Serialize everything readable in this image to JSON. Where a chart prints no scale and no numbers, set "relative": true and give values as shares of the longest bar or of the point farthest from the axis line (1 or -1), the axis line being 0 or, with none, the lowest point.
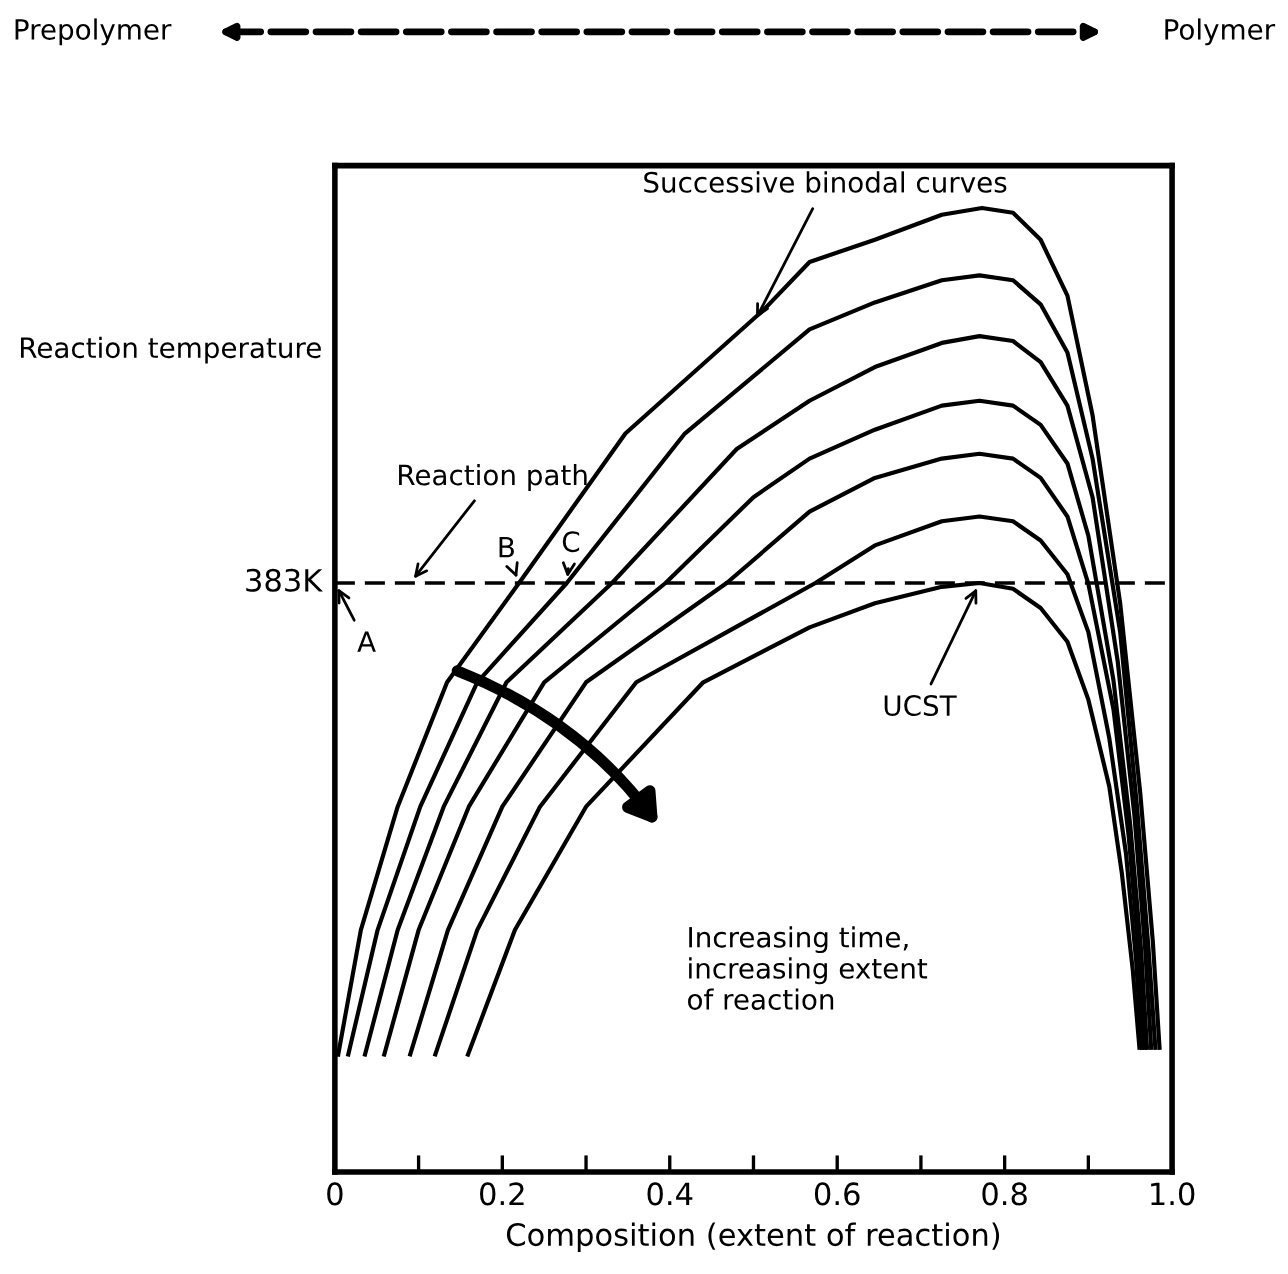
{
  "chart_data": {
    "type": "line",
    "relative": true,
    "xlabel": "Composition (extent of reaction)",
    "ylabel": "Reaction temperature",
    "xlim": [
      0,
      1.0
    ],
    "xticks": [
      0,
      {
        "value": 0.1,
        "label": null
      },
      0.2,
      {
        "value": 0.3,
        "label": null
      },
      0.4,
      {
        "value": 0.5,
        "label": null
      },
      0.6,
      {
        "value": 0.7,
        "label": null
      },
      0.8,
      {
        "value": 0.9,
        "label": null
      },
      {
        "value": 1.0,
        "label": "1.0"
      }
    ],
    "grid": false,
    "marker": "none",
    "line_style": "solid",
    "series": [
      {
        "color": "#000000",
        "x": [
          0.004,
          0.031,
          0.075,
          0.134,
          0.22,
          0.347,
          0.513,
          0.567,
          0.645,
          0.725,
          0.773,
          0.81,
          0.843,
          0.875,
          0.905,
          0.938,
          0.962,
          0.977,
          0.985
        ],
        "values": [
          0.122,
          0.251,
          0.379,
          0.508,
          0.611,
          0.766,
          0.895,
          0.944,
          0.967,
          0.993,
          1.0,
          0.995,
          0.967,
          0.909,
          0.785,
          0.59,
          0.393,
          0.239,
          0.129
        ]
      },
      {
        "color": "#000000",
        "x": [
          0.016,
          0.051,
          0.102,
          0.17,
          0.277,
          0.418,
          0.567,
          0.645,
          0.725,
          0.77,
          0.81,
          0.843,
          0.875,
          0.905,
          0.938,
          0.958,
          0.972,
          0.98
        ],
        "values": [
          0.122,
          0.251,
          0.379,
          0.508,
          0.611,
          0.766,
          0.874,
          0.902,
          0.925,
          0.93,
          0.925,
          0.9,
          0.85,
          0.74,
          0.56,
          0.38,
          0.23,
          0.129
        ]
      },
      {
        "color": "#000000",
        "x": [
          0.036,
          0.075,
          0.13,
          0.205,
          0.331,
          0.48,
          0.567,
          0.645,
          0.725,
          0.77,
          0.81,
          0.843,
          0.875,
          0.905,
          0.935,
          0.955,
          0.968,
          0.975
        ],
        "values": [
          0.122,
          0.251,
          0.379,
          0.508,
          0.611,
          0.75,
          0.8,
          0.835,
          0.86,
          0.867,
          0.862,
          0.84,
          0.795,
          0.7,
          0.53,
          0.37,
          0.23,
          0.129
        ]
      },
      {
        "color": "#000000",
        "x": [
          0.059,
          0.1,
          0.16,
          0.25,
          0.395,
          0.5,
          0.567,
          0.645,
          0.725,
          0.77,
          0.81,
          0.843,
          0.875,
          0.9,
          0.93,
          0.95,
          0.963,
          0.97
        ],
        "values": [
          0.122,
          0.251,
          0.379,
          0.508,
          0.611,
          0.7,
          0.74,
          0.77,
          0.795,
          0.8,
          0.795,
          0.775,
          0.735,
          0.66,
          0.51,
          0.36,
          0.23,
          0.129
        ]
      },
      {
        "color": "#000000",
        "x": [
          0.09,
          0.135,
          0.2,
          0.3,
          0.468,
          0.567,
          0.645,
          0.725,
          0.77,
          0.81,
          0.843,
          0.875,
          0.9,
          0.93,
          0.948,
          0.96,
          0.967
        ],
        "values": [
          0.122,
          0.251,
          0.379,
          0.508,
          0.611,
          0.685,
          0.72,
          0.74,
          0.745,
          0.74,
          0.72,
          0.68,
          0.61,
          0.48,
          0.35,
          0.23,
          0.129
        ]
      },
      {
        "color": "#000000",
        "x": [
          0.12,
          0.17,
          0.245,
          0.36,
          0.574,
          0.645,
          0.725,
          0.77,
          0.81,
          0.843,
          0.875,
          0.9,
          0.925,
          0.945,
          0.957,
          0.964
        ],
        "values": [
          0.122,
          0.251,
          0.379,
          0.508,
          0.611,
          0.65,
          0.675,
          0.68,
          0.675,
          0.655,
          0.62,
          0.56,
          0.45,
          0.33,
          0.22,
          0.129
        ]
      },
      {
        "color": "#000000",
        "x": [
          0.159,
          0.215,
          0.3,
          0.44,
          0.567,
          0.645,
          0.725,
          0.77,
          0.81,
          0.843,
          0.875,
          0.9,
          0.925,
          0.94,
          0.953,
          0.961
        ],
        "values": [
          0.122,
          0.251,
          0.379,
          0.508,
          0.565,
          0.59,
          0.607,
          0.611,
          0.605,
          0.585,
          0.55,
          0.49,
          0.4,
          0.31,
          0.21,
          0.129
        ]
      }
    ],
    "ref_lines": [
      {
        "axis": "y",
        "value": 0.611,
        "label": "383K",
        "color": "#000000",
        "line_style": "dashed"
      }
    ],
    "annotations": [
      "Prepolymer",
      "Polymer",
      {
        "text": "A",
        "x": 0.0,
        "y": 0.611
      },
      {
        "text": "Reaction path",
        "x": 0.09,
        "y": 0.611
      },
      {
        "text": "B",
        "x": 0.22,
        "y": 0.611
      },
      {
        "text": "C",
        "x": 0.277,
        "y": 0.611
      },
      {
        "text": "Successive binodal curves",
        "x": 0.5,
        "y": 0.88
      },
      {
        "text": "UCST",
        "x": 0.77,
        "y": 0.611
      },
      "Increasing time,\nincreasing extent\nof reaction"
    ]
  }
}
